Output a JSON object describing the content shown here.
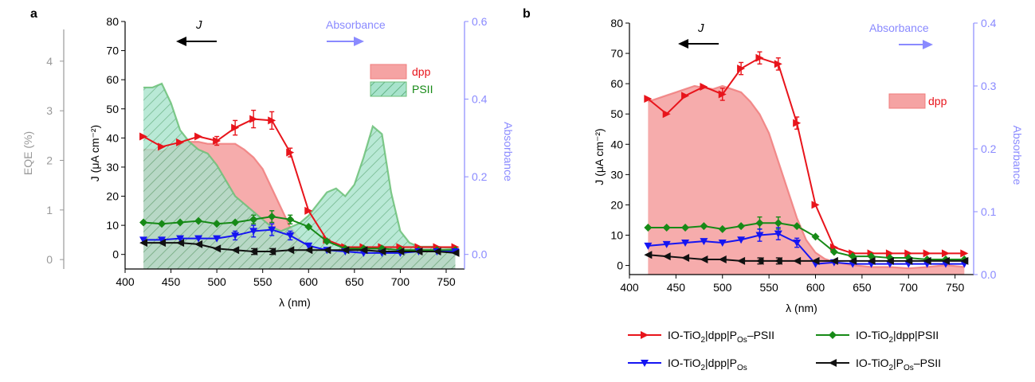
{
  "colors": {
    "red": "#e8141b",
    "green": "#178a17",
    "blue": "#1515f2",
    "black": "#111111",
    "absorbance": "#8a8aff",
    "eqe": "#999999",
    "dpp_fill": "#f5a3a3",
    "dpp_edge": "#f07c7c",
    "psii_fill": "#a8e3cc",
    "psii_edge": "#6bbf77",
    "psii_hatch": "#52a873"
  },
  "panel_a": {
    "label": "a",
    "j_annotation": "J",
    "abs_annotation": "Absorbance",
    "legend": {
      "dpp": "dpp",
      "psii": "PSII"
    }
  },
  "panel_b": {
    "label": "b",
    "j_annotation": "J",
    "abs_annotation": "Absorbance",
    "legend": {
      "dpp": "dpp"
    }
  },
  "legend": {
    "items": [
      {
        "key": "ptios_psii",
        "prefix": "IO-TiO",
        "sub1": "2",
        "mid": "|dpp|P",
        "sub2": "Os",
        "suffix": "–PSII"
      },
      {
        "key": "dpp_psii",
        "prefix": "IO-TiO",
        "sub1": "2",
        "mid": "|dpp|PSII",
        "sub2": "",
        "suffix": ""
      },
      {
        "key": "dpp_pos",
        "prefix": "IO-TiO",
        "sub1": "2",
        "mid": "|dpp|P",
        "sub2": "Os",
        "suffix": ""
      },
      {
        "key": "pos_psii",
        "prefix": "IO-TiO",
        "sub1": "2",
        "mid": "|P",
        "sub2": "Os",
        "suffix": "–PSII"
      }
    ]
  },
  "chart_data": [
    {
      "type": "line",
      "panel": "a",
      "title": "",
      "xlabel": "λ (nm)",
      "ylabel": "J (μA cm⁻²)",
      "y2label": "Absorbance",
      "y3label": "EQE (%)",
      "xlim": [
        400,
        770
      ],
      "ylim": [
        -5,
        80
      ],
      "y2lim": [
        -0.0375,
        0.6
      ],
      "y3lim": [
        -0.19,
        4.8
      ],
      "xticks": [
        400,
        450,
        500,
        550,
        600,
        650,
        700,
        750
      ],
      "yticks": [
        0,
        10,
        20,
        30,
        40,
        50,
        60,
        70,
        80
      ],
      "y2ticks": [
        0.0,
        0.2,
        0.4,
        0.6
      ],
      "y2ticklabels": [
        "0.0",
        "0.2",
        "0.4",
        "0.6"
      ],
      "y3ticks": [
        0,
        1,
        2,
        3,
        4
      ],
      "x": [
        420,
        440,
        460,
        480,
        500,
        520,
        540,
        560,
        580,
        600,
        620,
        640,
        660,
        680,
        700,
        720,
        740,
        760
      ],
      "series": [
        {
          "key": "ptios_psii",
          "name": "IO-TiO2|dpp|POs–PSII",
          "color": "red",
          "marker": "tri-right",
          "values": [
            40.5,
            37,
            38.5,
            40.5,
            39,
            43.5,
            46.5,
            46,
            35,
            15,
            5,
            2.5,
            2.5,
            2.5,
            2.5,
            2.5,
            2.5,
            2.5
          ],
          "errors": [
            0,
            0,
            0,
            0,
            1.5,
            2.5,
            3,
            3,
            1.5,
            0,
            0,
            0,
            0,
            0,
            0,
            0,
            0,
            0
          ]
        },
        {
          "key": "dpp_psii",
          "name": "IO-TiO2|dpp|PSII",
          "color": "green",
          "marker": "diamond",
          "values": [
            11,
            10.5,
            11,
            11.5,
            10.5,
            11,
            12,
            13,
            12,
            9.5,
            4.5,
            2,
            2,
            2,
            1.5,
            1.5,
            1.5,
            1.5
          ],
          "errors": [
            0,
            0,
            0,
            0,
            0,
            0,
            1.5,
            2,
            1.5,
            0,
            0,
            0,
            0,
            0,
            0,
            0,
            0,
            0
          ]
        },
        {
          "key": "dpp_pos",
          "name": "IO-TiO2|dpp|POs",
          "color": "blue",
          "marker": "tri-down",
          "values": [
            5,
            5,
            5.5,
            5.5,
            5.5,
            6.5,
            8,
            8.5,
            6.5,
            3,
            1.5,
            1,
            0.5,
            0.5,
            0.5,
            1,
            1,
            1
          ],
          "errors": [
            0,
            0,
            0,
            0,
            0,
            1.5,
            2,
            2,
            1.5,
            0,
            0,
            0,
            0,
            0,
            0,
            0,
            0,
            0
          ]
        },
        {
          "key": "pos_psii",
          "name": "IO-TiO2|POs–PSII",
          "color": "black",
          "marker": "tri-left",
          "values": [
            4,
            4,
            4,
            3.5,
            2,
            1.5,
            1,
            1,
            1.5,
            1.5,
            1.5,
            1.5,
            1.5,
            1,
            1,
            1,
            1,
            0.5
          ],
          "errors": [
            0,
            0,
            0,
            0,
            0,
            0,
            1,
            1,
            0,
            0,
            0,
            0,
            0,
            0,
            0,
            0,
            0,
            0
          ]
        }
      ],
      "absorbance": [
        {
          "name": "dpp",
          "fill": "dpp_fill",
          "x": [
            420,
            430,
            440,
            450,
            460,
            470,
            480,
            490,
            500,
            510,
            520,
            530,
            540,
            550,
            560,
            570,
            580,
            590,
            600,
            610,
            620,
            630,
            640,
            660,
            680,
            700,
            720,
            740,
            760
          ],
          "values": [
            0.27,
            0.27,
            0.265,
            0.275,
            0.285,
            0.29,
            0.29,
            0.285,
            0.285,
            0.285,
            0.285,
            0.27,
            0.25,
            0.22,
            0.17,
            0.12,
            0.07,
            0.04,
            0.02,
            0.015,
            0.01,
            0.01,
            0.012,
            0.012,
            0.015,
            0.015,
            0.012,
            0.02,
            0.012
          ]
        },
        {
          "name": "PSII",
          "fill": "psii_fill",
          "hatched": true,
          "x": [
            420,
            430,
            440,
            450,
            460,
            470,
            480,
            490,
            500,
            510,
            520,
            530,
            540,
            550,
            560,
            570,
            580,
            590,
            600,
            610,
            620,
            630,
            640,
            650,
            660,
            670,
            680,
            690,
            700,
            710,
            720,
            740,
            760
          ],
          "values": [
            0.43,
            0.43,
            0.44,
            0.39,
            0.32,
            0.29,
            0.27,
            0.26,
            0.23,
            0.19,
            0.15,
            0.13,
            0.11,
            0.09,
            0.07,
            0.06,
            0.07,
            0.08,
            0.1,
            0.13,
            0.16,
            0.17,
            0.15,
            0.18,
            0.25,
            0.33,
            0.31,
            0.16,
            0.06,
            0.03,
            0.02,
            0.02,
            0.015
          ]
        }
      ]
    },
    {
      "type": "line",
      "panel": "b",
      "title": "",
      "xlabel": "λ (nm)",
      "ylabel": "J (μA cm⁻²)",
      "y2label": "Absorbance",
      "xlim": [
        400,
        770
      ],
      "ylim": [
        -3,
        80
      ],
      "y2lim": [
        0.0,
        0.4
      ],
      "xticks": [
        400,
        450,
        500,
        550,
        600,
        650,
        700,
        750
      ],
      "yticks": [
        0,
        10,
        20,
        30,
        40,
        50,
        60,
        70,
        80
      ],
      "y2ticks": [
        0.0,
        0.1,
        0.2,
        0.3,
        0.4
      ],
      "y2ticklabels": [
        "0.0",
        "0.1",
        "0.2",
        "0.3",
        "0.4"
      ],
      "x": [
        420,
        440,
        460,
        480,
        500,
        520,
        540,
        560,
        580,
        600,
        620,
        640,
        660,
        680,
        700,
        720,
        740,
        760
      ],
      "series": [
        {
          "key": "ptios_psii",
          "name": "IO-TiO2|dpp|POs–PSII",
          "color": "red",
          "marker": "tri-right",
          "values": [
            55,
            50,
            56,
            59,
            56.5,
            65,
            68.5,
            66.5,
            47,
            20,
            6,
            4,
            4,
            4,
            4,
            4,
            4,
            4
          ],
          "errors": [
            0,
            0,
            0,
            0,
            2,
            2,
            2,
            2,
            2,
            0,
            0,
            0,
            0,
            0,
            0,
            0,
            0,
            0
          ]
        },
        {
          "key": "dpp_psii",
          "name": "IO-TiO2|dpp|PSII",
          "color": "green",
          "marker": "diamond",
          "values": [
            12.5,
            12.5,
            12.5,
            13,
            12,
            13,
            14,
            14,
            13,
            9.5,
            4.5,
            3,
            3,
            2.5,
            2.5,
            2,
            2,
            2
          ],
          "errors": [
            0,
            0,
            0,
            0,
            0,
            0,
            2,
            2,
            0,
            0,
            0,
            0,
            0,
            0,
            0,
            0,
            0,
            0
          ]
        },
        {
          "key": "dpp_pos",
          "name": "IO-TiO2|dpp|POs",
          "color": "blue",
          "marker": "tri-down",
          "values": [
            6.5,
            7,
            7.5,
            8,
            7.5,
            8.5,
            10,
            10.5,
            7.5,
            0.5,
            1,
            0.5,
            0.5,
            0.5,
            0.5,
            0.5,
            0.5,
            0.5
          ],
          "errors": [
            0,
            0,
            0,
            0,
            0,
            0,
            2,
            2,
            1.5,
            0,
            0,
            0,
            0,
            0,
            0,
            0,
            0,
            0
          ]
        },
        {
          "key": "pos_psii",
          "name": "IO-TiO2|POs–PSII",
          "color": "black",
          "marker": "tri-left",
          "values": [
            3.5,
            3,
            2.5,
            2,
            2,
            1.5,
            1.5,
            1.5,
            1.5,
            1.5,
            1.5,
            1.5,
            1.5,
            1.5,
            1.5,
            1.5,
            1.5,
            1.5
          ],
          "errors": [
            0,
            0,
            0,
            0,
            0,
            0,
            1,
            1,
            0,
            0,
            0,
            0,
            0,
            0,
            0,
            0,
            0,
            0
          ]
        }
      ],
      "absorbance": [
        {
          "name": "dpp",
          "fill": "dpp_fill",
          "x": [
            420,
            430,
            440,
            450,
            460,
            470,
            480,
            490,
            500,
            510,
            520,
            530,
            540,
            550,
            560,
            570,
            580,
            590,
            600,
            610,
            620,
            640,
            660,
            680,
            700,
            720,
            740,
            760
          ],
          "values": [
            0.275,
            0.28,
            0.285,
            0.29,
            0.295,
            0.3,
            0.297,
            0.295,
            0.3,
            0.295,
            0.29,
            0.275,
            0.255,
            0.225,
            0.18,
            0.135,
            0.09,
            0.055,
            0.035,
            0.025,
            0.02,
            0.015,
            0.012,
            0.012,
            0.01,
            0.012,
            0.015,
            0.012
          ]
        }
      ]
    }
  ]
}
